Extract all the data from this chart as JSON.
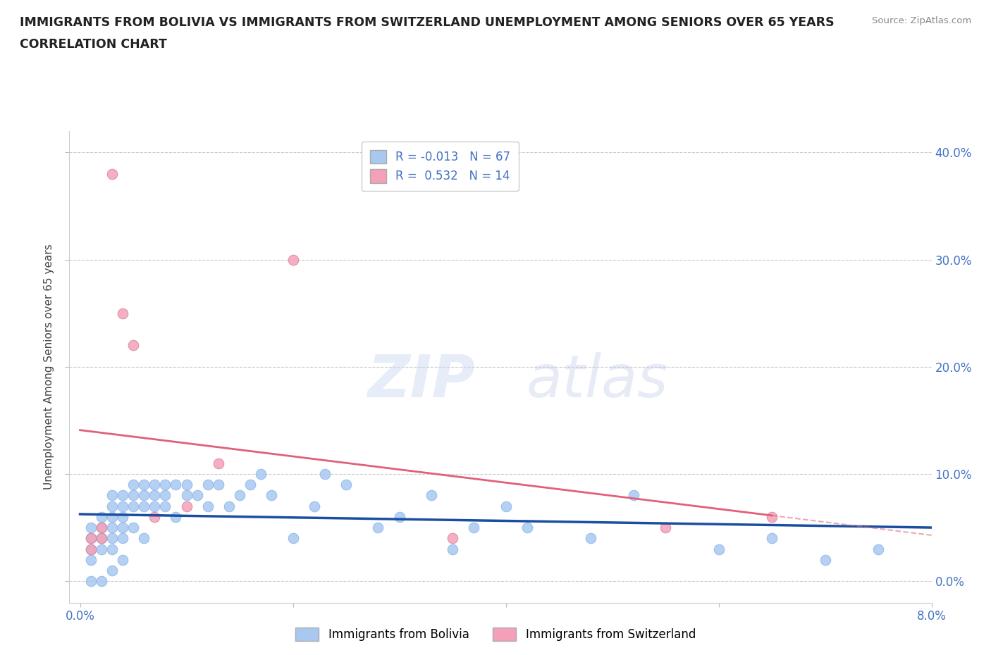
{
  "title_line1": "IMMIGRANTS FROM BOLIVIA VS IMMIGRANTS FROM SWITZERLAND UNEMPLOYMENT AMONG SENIORS OVER 65 YEARS",
  "title_line2": "CORRELATION CHART",
  "source": "Source: ZipAtlas.com",
  "ylabel": "Unemployment Among Seniors over 65 years",
  "xlim": [
    0.0,
    0.08
  ],
  "ylim": [
    -0.02,
    0.42
  ],
  "yticks": [
    0.0,
    0.1,
    0.2,
    0.3,
    0.4
  ],
  "xticks": [
    0.0,
    0.02,
    0.04,
    0.06,
    0.08
  ],
  "bolivia_R": -0.013,
  "bolivia_N": 67,
  "switzerland_R": 0.532,
  "switzerland_N": 14,
  "bolivia_color": "#a8c8f0",
  "bolivia_line_color": "#1a4fa0",
  "switzerland_color": "#f4a0b8",
  "switzerland_line_color": "#e0607a",
  "watermark_zip": "ZIP",
  "watermark_atlas": "atlas",
  "bolivia_x": [
    0.001,
    0.001,
    0.001,
    0.001,
    0.001,
    0.002,
    0.002,
    0.002,
    0.002,
    0.002,
    0.003,
    0.003,
    0.003,
    0.003,
    0.003,
    0.003,
    0.003,
    0.004,
    0.004,
    0.004,
    0.004,
    0.004,
    0.004,
    0.005,
    0.005,
    0.005,
    0.005,
    0.006,
    0.006,
    0.006,
    0.006,
    0.007,
    0.007,
    0.007,
    0.008,
    0.008,
    0.008,
    0.009,
    0.009,
    0.01,
    0.01,
    0.011,
    0.012,
    0.012,
    0.013,
    0.014,
    0.015,
    0.016,
    0.017,
    0.018,
    0.02,
    0.022,
    0.023,
    0.025,
    0.028,
    0.03,
    0.033,
    0.035,
    0.037,
    0.04,
    0.042,
    0.048,
    0.052,
    0.06,
    0.065,
    0.07,
    0.075
  ],
  "bolivia_y": [
    0.05,
    0.04,
    0.03,
    0.02,
    0.0,
    0.06,
    0.05,
    0.04,
    0.03,
    0.0,
    0.08,
    0.07,
    0.06,
    0.05,
    0.04,
    0.03,
    0.01,
    0.08,
    0.07,
    0.06,
    0.05,
    0.04,
    0.02,
    0.09,
    0.08,
    0.07,
    0.05,
    0.09,
    0.08,
    0.07,
    0.04,
    0.09,
    0.08,
    0.07,
    0.09,
    0.08,
    0.07,
    0.09,
    0.06,
    0.09,
    0.08,
    0.08,
    0.09,
    0.07,
    0.09,
    0.07,
    0.08,
    0.09,
    0.1,
    0.08,
    0.04,
    0.07,
    0.1,
    0.09,
    0.05,
    0.06,
    0.08,
    0.03,
    0.05,
    0.07,
    0.05,
    0.04,
    0.08,
    0.03,
    0.04,
    0.02,
    0.03
  ],
  "switzerland_x": [
    0.001,
    0.001,
    0.002,
    0.002,
    0.003,
    0.004,
    0.005,
    0.007,
    0.01,
    0.013,
    0.02,
    0.035,
    0.055,
    0.065
  ],
  "switzerland_y": [
    0.04,
    0.03,
    0.05,
    0.04,
    0.38,
    0.25,
    0.22,
    0.06,
    0.07,
    0.11,
    0.3,
    0.04,
    0.05,
    0.06
  ]
}
